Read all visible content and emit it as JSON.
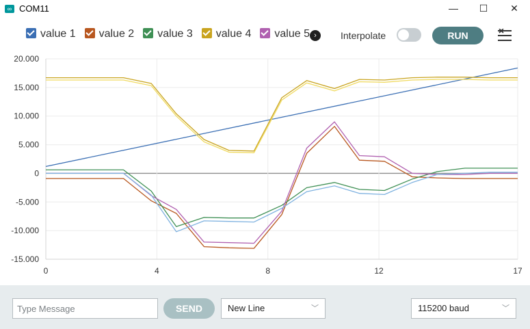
{
  "window": {
    "title": "COM11",
    "minimize": "—",
    "maximize": "☐",
    "close": "✕"
  },
  "toolbar": {
    "legend": [
      {
        "label": "value 1",
        "color": "#3b6fb4"
      },
      {
        "label": "value 2",
        "color": "#b8571f"
      },
      {
        "label": "value 3",
        "color": "#3f9055"
      },
      {
        "label": "value 4",
        "color": "#c9a41f"
      },
      {
        "label": "value 5",
        "color": "#b060b0"
      }
    ],
    "legend_more": "›",
    "interpolate_label": "Interpolate",
    "run_label": "RUN"
  },
  "chart_data": {
    "type": "line",
    "ylim": [
      -15000,
      20000
    ],
    "xlim": [
      0,
      17
    ],
    "y_ticks": [
      20000,
      15000,
      10000,
      5000,
      0,
      -5000,
      -10000,
      -15000
    ],
    "y_tick_labels": [
      "20.000",
      "15.000",
      "10.000",
      "5.000",
      "0",
      "-5.000",
      "-10.000",
      "-15.000"
    ],
    "x_ticks": [
      0,
      4,
      8,
      12,
      17
    ],
    "x_tick_labels": [
      "0",
      "4",
      "8",
      "12",
      "17"
    ],
    "grid": true,
    "series": [
      {
        "name": "value 1",
        "color": "#3b6fb4",
        "x": [
          0,
          17
        ],
        "y": [
          1200,
          18400
        ]
      },
      {
        "name": "value 2",
        "color": "#b8571f",
        "x": [
          0,
          2.8,
          3.8,
          4.7,
          5.7,
          6.6,
          7.5,
          8.5,
          9.4,
          10.4,
          11.3,
          12.2,
          13.2,
          14.1,
          15.1,
          16,
          17
        ],
        "y": [
          -900,
          -900,
          -4800,
          -7000,
          -12800,
          -13000,
          -13100,
          -7200,
          3500,
          8200,
          2300,
          2100,
          -600,
          -800,
          -900,
          -900,
          -900
        ]
      },
      {
        "name": "value 3",
        "color": "#3f9055",
        "x": [
          0,
          2.8,
          3.8,
          4.7,
          5.7,
          6.6,
          7.5,
          8.5,
          9.4,
          10.4,
          11.3,
          12.2,
          13.2,
          14.1,
          15.1,
          16,
          17
        ],
        "y": [
          600,
          600,
          -3100,
          -9300,
          -7700,
          -7800,
          -7800,
          -5600,
          -2500,
          -1600,
          -2800,
          -3000,
          -1000,
          300,
          900,
          900,
          900
        ]
      },
      {
        "name": "value 4",
        "color": "#c9a41f",
        "x": [
          0,
          2.8,
          3.8,
          4.7,
          5.7,
          6.6,
          7.5,
          8.5,
          9.4,
          10.4,
          11.3,
          12.2,
          13.2,
          14.1,
          15.1,
          16,
          17
        ],
        "y": [
          16700,
          16700,
          15700,
          10400,
          5900,
          4000,
          3900,
          13200,
          16200,
          14800,
          16400,
          16300,
          16700,
          16800,
          16800,
          16700,
          16700
        ]
      },
      {
        "name": "",
        "color": "#f0da60",
        "x": [
          0,
          2.8,
          3.8,
          4.7,
          5.7,
          6.6,
          7.5,
          8.5,
          9.4,
          10.4,
          11.3,
          12.2,
          13.2,
          14.1,
          15.1,
          16,
          17
        ],
        "y": [
          16300,
          16300,
          15300,
          10000,
          5500,
          3700,
          3600,
          12800,
          15800,
          14400,
          16000,
          15900,
          16300,
          16400,
          16400,
          16300,
          16300
        ]
      },
      {
        "name": "value 5",
        "color": "#b060b0",
        "x": [
          0,
          2.8,
          3.8,
          4.7,
          5.7,
          6.6,
          7.5,
          8.5,
          9.4,
          10.4,
          11.3,
          12.2,
          13.2,
          14.1,
          15.1,
          16,
          17
        ],
        "y": [
          0,
          0,
          -3900,
          -6300,
          -12000,
          -12100,
          -12200,
          -6600,
          4400,
          9000,
          3100,
          2900,
          0,
          -200,
          -200,
          0,
          0
        ]
      },
      {
        "name": "",
        "color": "#7fb2e0",
        "x": [
          0,
          2.8,
          3.8,
          4.7,
          5.7,
          6.6,
          7.5,
          8.5,
          9.4,
          10.4,
          11.3,
          12.2,
          13.2,
          14.1,
          15.1,
          16,
          17
        ],
        "y": [
          0,
          0,
          -3800,
          -10200,
          -8300,
          -8400,
          -8500,
          -6100,
          -3200,
          -2200,
          -3500,
          -3700,
          -1600,
          -200,
          0,
          200,
          200
        ]
      }
    ]
  },
  "bottom": {
    "message_placeholder": "Type Message",
    "send_label": "SEND",
    "line_ending": "New Line",
    "baud": "115200 baud"
  }
}
